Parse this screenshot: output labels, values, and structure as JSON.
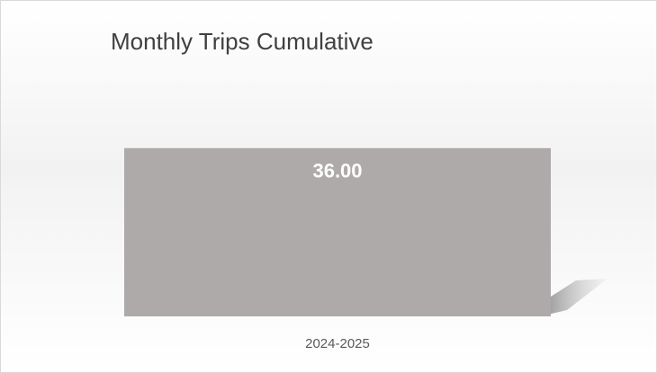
{
  "chart_data": {
    "type": "bar",
    "title": "Monthly Trips Cumulative",
    "categories": [
      "2024-2025"
    ],
    "values": [
      36
    ],
    "value_labels": [
      "36.00"
    ],
    "color": "#aeaaaa",
    "ylim": [
      0,
      40
    ]
  }
}
